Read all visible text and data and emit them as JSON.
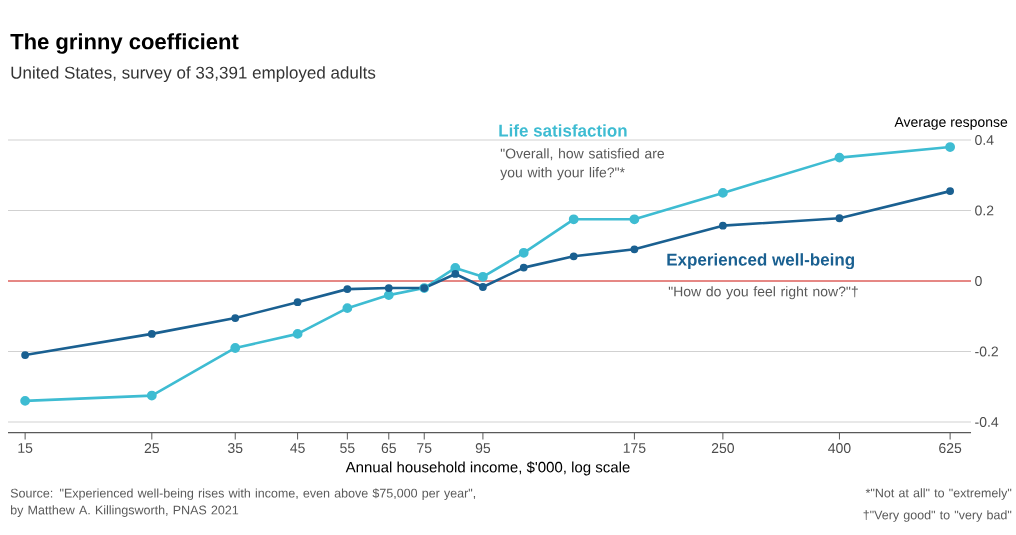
{
  "chart_data": {
    "type": "line",
    "title": "The grinny coefficient",
    "subtitle": "United States, survey of 33,391 employed adults",
    "xlabel": "Annual household income, $'000, log scale",
    "ylabel": "Average response",
    "x": [
      15,
      25,
      35,
      45,
      55,
      65,
      75,
      85,
      95,
      112,
      137,
      175,
      250,
      400,
      625
    ],
    "series": [
      {
        "name": "Life satisfaction",
        "color": "#3ebcd2",
        "values": [
          -0.34,
          -0.325,
          -0.19,
          -0.15,
          -0.077,
          -0.04,
          -0.02,
          0.037,
          0.012,
          0.08,
          0.175,
          0.175,
          0.25,
          0.35,
          0.38
        ]
      },
      {
        "name": "Experienced well-being",
        "color": "#1a6091",
        "values": [
          -0.21,
          -0.15,
          -0.105,
          -0.06,
          -0.023,
          -0.02,
          -0.02,
          0.02,
          -0.017,
          0.038,
          0.07,
          0.09,
          0.157,
          0.178,
          0.255
        ]
      }
    ],
    "xlim": [
      14,
      680
    ],
    "ylim": [
      -0.43,
      0.4
    ],
    "xticks": [
      15,
      25,
      35,
      45,
      55,
      65,
      75,
      95,
      175,
      250,
      400,
      625
    ],
    "yticks": [
      -0.4,
      -0.2,
      0,
      0.2,
      0.4
    ],
    "log": "x",
    "grid": "y",
    "marker": "circle",
    "line_style": "solid",
    "ref_lines": [
      {
        "axis": "y",
        "value": 0,
        "color": "#e3120b"
      }
    ],
    "annotations": [
      "\"Overall, how satisfied are you with your life?\"*",
      "\"How do you feel right now?\"†",
      "Source: \"Experienced well-being rises with income, even above $75,000 per year\", by Matthew A. Killingsworth, PNAS 2021",
      "*\"Not at all\" to \"extremely\"",
      "†\"Very good\" to \"very bad\""
    ]
  }
}
